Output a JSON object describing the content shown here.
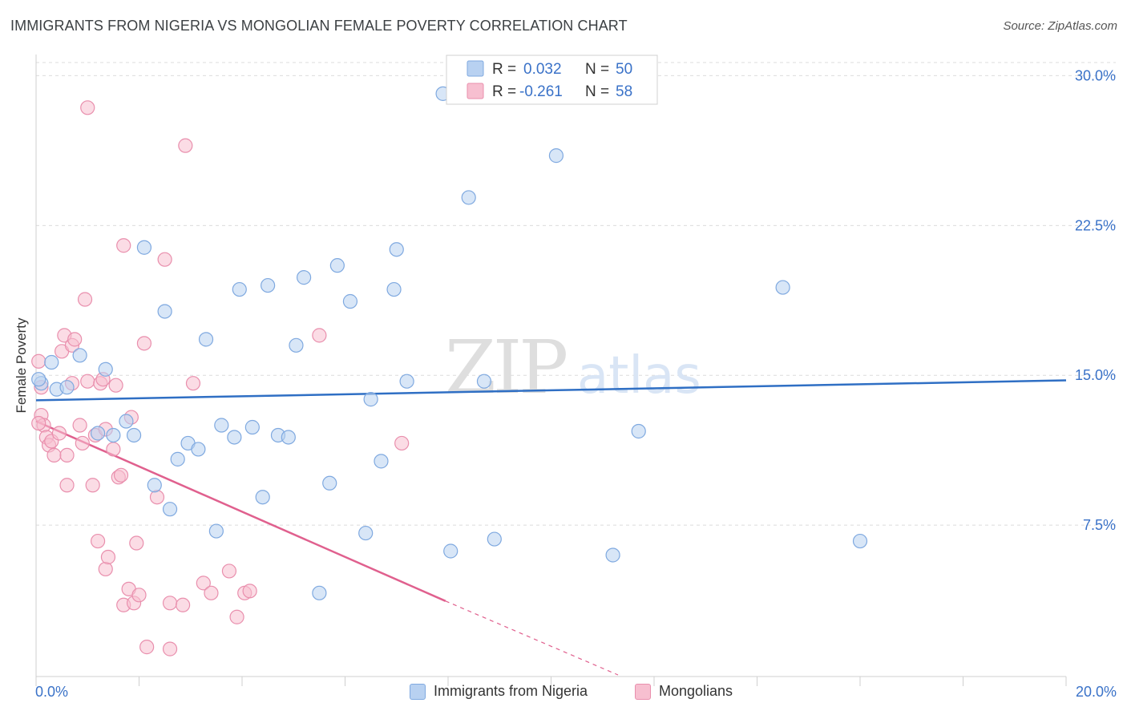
{
  "title": "IMMIGRANTS FROM NIGERIA VS MONGOLIAN FEMALE POVERTY CORRELATION CHART",
  "source": "Source: ZipAtlas.com",
  "watermark": {
    "zip": "ZIP",
    "atlas": "atlas"
  },
  "colors": {
    "blue_fill": "#b8d1f1",
    "blue_stroke": "#7fa9e0",
    "blue_line": "#2f6fc4",
    "pink_fill": "#f7bfd0",
    "pink_stroke": "#e98fad",
    "pink_line": "#e0608e",
    "axis_text": "#3a72c8",
    "grid": "#dcdcdc"
  },
  "stats_legend": [
    {
      "r_label": "R = ",
      "r_value": "0.032",
      "n_label": "N = ",
      "n_value": "50"
    },
    {
      "r_label": "R = ",
      "r_value": "-0.261",
      "n_label": "N = ",
      "n_value": "58"
    }
  ],
  "bottom_legend": [
    "Immigrants from Nigeria",
    "Mongolians"
  ],
  "chart_data": {
    "type": "scatter",
    "title": "IMMIGRANTS FROM NIGERIA VS MONGOLIAN FEMALE POVERTY CORRELATION CHART",
    "xlabel": "",
    "ylabel": "Female Poverty",
    "xlim": [
      0,
      20
    ],
    "ylim": [
      0,
      30.9
    ],
    "x_tick_labels": [
      "0.0%",
      "20.0%"
    ],
    "y_ticks": [
      7.5,
      15.0,
      22.5,
      30.0
    ],
    "y_tick_labels": [
      "7.5%",
      "15.0%",
      "22.5%",
      "30.0%"
    ],
    "grid": true,
    "legend_position": "top-center",
    "series": [
      {
        "name": "Immigrants from Nigeria",
        "r": 0.032,
        "n": 50,
        "trend": {
          "x": [
            0,
            20
          ],
          "y": [
            13.75,
            14.75
          ]
        },
        "points": [
          [
            0.1,
            14.6
          ],
          [
            0.3,
            15.65
          ],
          [
            0.4,
            14.3
          ],
          [
            0.6,
            14.4
          ],
          [
            0.85,
            16.0
          ],
          [
            1.2,
            12.1
          ],
          [
            1.35,
            15.3
          ],
          [
            1.5,
            12.0
          ],
          [
            1.75,
            12.7
          ],
          [
            1.9,
            12.0
          ],
          [
            2.1,
            21.4
          ],
          [
            2.3,
            9.5
          ],
          [
            2.5,
            18.2
          ],
          [
            2.6,
            8.3
          ],
          [
            2.75,
            10.8
          ],
          [
            2.95,
            11.6
          ],
          [
            3.15,
            11.3
          ],
          [
            3.3,
            16.8
          ],
          [
            3.5,
            7.2
          ],
          [
            3.6,
            12.5
          ],
          [
            3.85,
            11.9
          ],
          [
            3.95,
            19.3
          ],
          [
            4.2,
            12.4
          ],
          [
            4.4,
            8.9
          ],
          [
            4.5,
            19.5
          ],
          [
            4.7,
            12.0
          ],
          [
            4.9,
            11.9
          ],
          [
            5.05,
            16.5
          ],
          [
            5.2,
            19.9
          ],
          [
            5.5,
            4.1
          ],
          [
            5.7,
            9.6
          ],
          [
            5.85,
            20.5
          ],
          [
            6.1,
            18.7
          ],
          [
            6.4,
            7.1
          ],
          [
            6.5,
            13.8
          ],
          [
            6.7,
            10.7
          ],
          [
            6.95,
            19.3
          ],
          [
            7.0,
            21.3
          ],
          [
            7.2,
            14.7
          ],
          [
            7.9,
            29.1
          ],
          [
            8.05,
            6.2
          ],
          [
            8.4,
            23.9
          ],
          [
            8.7,
            14.7
          ],
          [
            8.9,
            6.8
          ],
          [
            10.1,
            26.0
          ],
          [
            11.2,
            6.0
          ],
          [
            11.7,
            12.2
          ],
          [
            14.5,
            19.4
          ],
          [
            16.0,
            6.7
          ],
          [
            0.05,
            14.8
          ]
        ]
      },
      {
        "name": "Mongolians",
        "r": -0.261,
        "n": 58,
        "trend": {
          "x": [
            0,
            7.95
          ],
          "y": [
            12.7,
            3.7
          ]
        },
        "trend_dashed": {
          "x": [
            7.95,
            11.3
          ],
          "y": [
            3.7,
            0.0
          ]
        },
        "points": [
          [
            0.05,
            15.7
          ],
          [
            0.1,
            14.4
          ],
          [
            0.1,
            13.0
          ],
          [
            0.15,
            12.5
          ],
          [
            0.2,
            11.9
          ],
          [
            0.25,
            11.5
          ],
          [
            0.3,
            11.7
          ],
          [
            0.35,
            11.0
          ],
          [
            0.45,
            12.1
          ],
          [
            0.5,
            16.2
          ],
          [
            0.55,
            17.0
          ],
          [
            0.6,
            9.5
          ],
          [
            0.6,
            11.0
          ],
          [
            0.7,
            14.6
          ],
          [
            0.7,
            16.5
          ],
          [
            0.75,
            16.8
          ],
          [
            0.85,
            12.5
          ],
          [
            0.9,
            11.6
          ],
          [
            0.95,
            18.8
          ],
          [
            1.0,
            14.7
          ],
          [
            1.0,
            28.4
          ],
          [
            1.1,
            9.5
          ],
          [
            1.15,
            12.0
          ],
          [
            1.2,
            6.7
          ],
          [
            1.25,
            14.6
          ],
          [
            1.3,
            14.8
          ],
          [
            1.35,
            5.3
          ],
          [
            1.35,
            12.3
          ],
          [
            1.4,
            5.9
          ],
          [
            1.5,
            11.3
          ],
          [
            1.55,
            14.5
          ],
          [
            1.6,
            9.9
          ],
          [
            1.65,
            10.0
          ],
          [
            1.7,
            21.5
          ],
          [
            1.7,
            3.5
          ],
          [
            1.8,
            4.3
          ],
          [
            1.85,
            12.9
          ],
          [
            1.9,
            3.6
          ],
          [
            1.95,
            6.6
          ],
          [
            2.0,
            4.0
          ],
          [
            2.1,
            16.6
          ],
          [
            2.15,
            1.4
          ],
          [
            2.35,
            8.9
          ],
          [
            2.5,
            20.8
          ],
          [
            2.6,
            1.3
          ],
          [
            2.6,
            3.6
          ],
          [
            2.85,
            3.5
          ],
          [
            2.9,
            26.5
          ],
          [
            3.05,
            14.6
          ],
          [
            3.25,
            4.6
          ],
          [
            3.4,
            4.1
          ],
          [
            3.75,
            5.2
          ],
          [
            3.9,
            2.9
          ],
          [
            4.05,
            4.1
          ],
          [
            4.15,
            4.2
          ],
          [
            5.5,
            17.0
          ],
          [
            7.1,
            11.6
          ],
          [
            0.05,
            12.6
          ]
        ]
      }
    ]
  }
}
